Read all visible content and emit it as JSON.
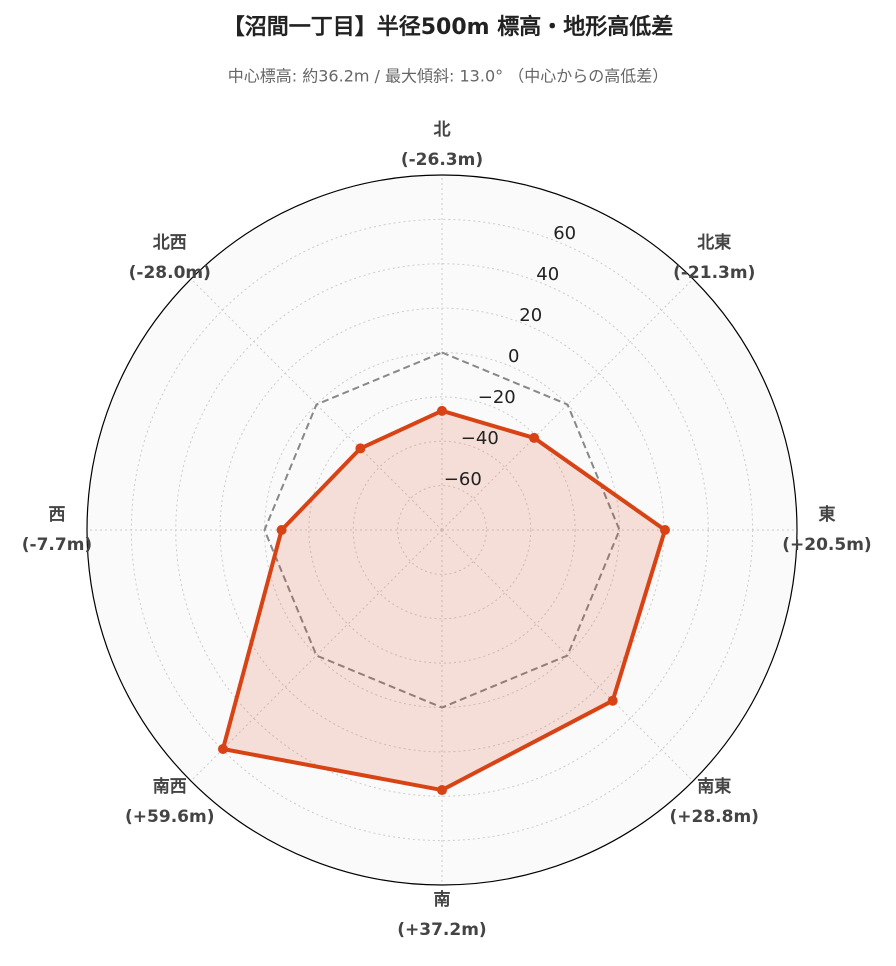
{
  "chart_data": {
    "type": "radar",
    "title": "【沼間一丁目】半径500m 標高・地形高低差",
    "subtitle": "中心標高: 約36.2m / 最大傾斜: 13.0° （中心からの高低差）",
    "categories": [
      "北",
      "北東",
      "東",
      "南東",
      "南",
      "南西",
      "西",
      "北西"
    ],
    "values": [
      -26.3,
      -21.3,
      20.5,
      28.8,
      37.2,
      59.6,
      -7.7,
      -28.0
    ],
    "value_labels": [
      "(-26.3m)",
      "(-21.3m)",
      "(+20.5m)",
      "(+28.8m)",
      "(+37.2m)",
      "(+59.6m)",
      "(-7.7m)",
      "(-28.0m)"
    ],
    "color": "#d84315",
    "reference_value": 0,
    "ylim": [
      -80,
      80
    ],
    "yticks": [
      {
        "value": -60,
        "label": "−60"
      },
      {
        "value": -40,
        "label": "−40"
      },
      {
        "value": -20,
        "label": "−20"
      },
      0,
      20,
      40,
      60
    ],
    "grid": true
  }
}
